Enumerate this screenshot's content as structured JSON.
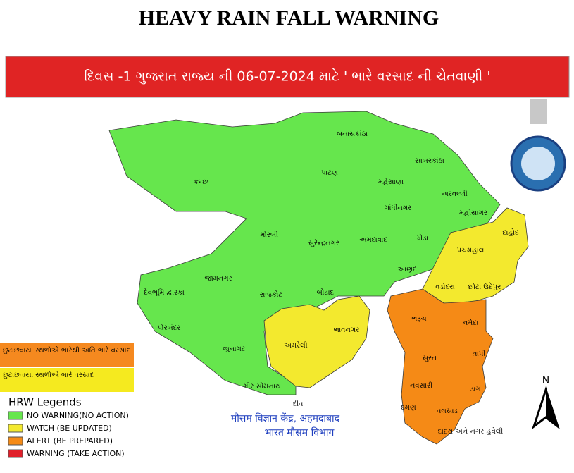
{
  "header": {
    "title": "HEAVY RAIN FALL WARNING",
    "banner": "દિવસ -1 ગુજરાત રાજ્ય ની  06-07-2024  માટે ' ભારે વરસાદ ની ચેતવાણી '"
  },
  "districts": [
    "કચ્છ",
    "બનાસકાંઠા",
    "પાટણ",
    "મહેસાણા",
    "સાબરકાંઠા",
    "અરવલ્લી",
    "ગાંધીનગર",
    "મહીસાગર",
    "મોરબી",
    "સુરેન્દ્રનગર",
    "અમદાવાદ",
    "ખેડા",
    "દાહોદ",
    "પંચમહાલ",
    "આણંદ",
    "જામનગર",
    "વડોદરા",
    "છોટા ઉદેપુર",
    "દેવભૂમિ દ્વારકા",
    "રાજકોટ",
    "બોટાદ",
    "ભરૂચ",
    "નર્મદા",
    "પોરબંદર",
    "અમરેલી",
    "ભાવનગર",
    "જુનાગઢ",
    "સુરત",
    "તાપી",
    "નવસારી",
    "ડાંગ",
    "ગીર સોમનાથ",
    "દીવ",
    "દમણ",
    "વલસાડ",
    "દાદરા અને નગર હવેલી"
  ],
  "rain_notes": [
    {
      "text": "છુટાછવાયા સ્થળોએ ભારેથી અતિ ભારે વરસાદ",
      "color": "#f5891f"
    },
    {
      "text": "છુટાછવાયા સ્થળોએ ભારે વરસાદ",
      "color": "#f5ea1f"
    }
  ],
  "legend": {
    "title": "HRW Legends",
    "items": [
      {
        "label": "NO WARNING(NO ACTION)",
        "color": "#66e64d"
      },
      {
        "label": "WATCH (BE UPDATED)",
        "color": "#f3e92e"
      },
      {
        "label": "ALERT (BE PREPARED)",
        "color": "#f58a16"
      },
      {
        "label": "WARNING (TAKE ACTION)",
        "color": "#e0202a"
      }
    ]
  },
  "office": [
    "मौसम विज्ञान केंद्र, अहमदाबाद",
    "भारत मौसम विभाग"
  ],
  "north": "N"
}
